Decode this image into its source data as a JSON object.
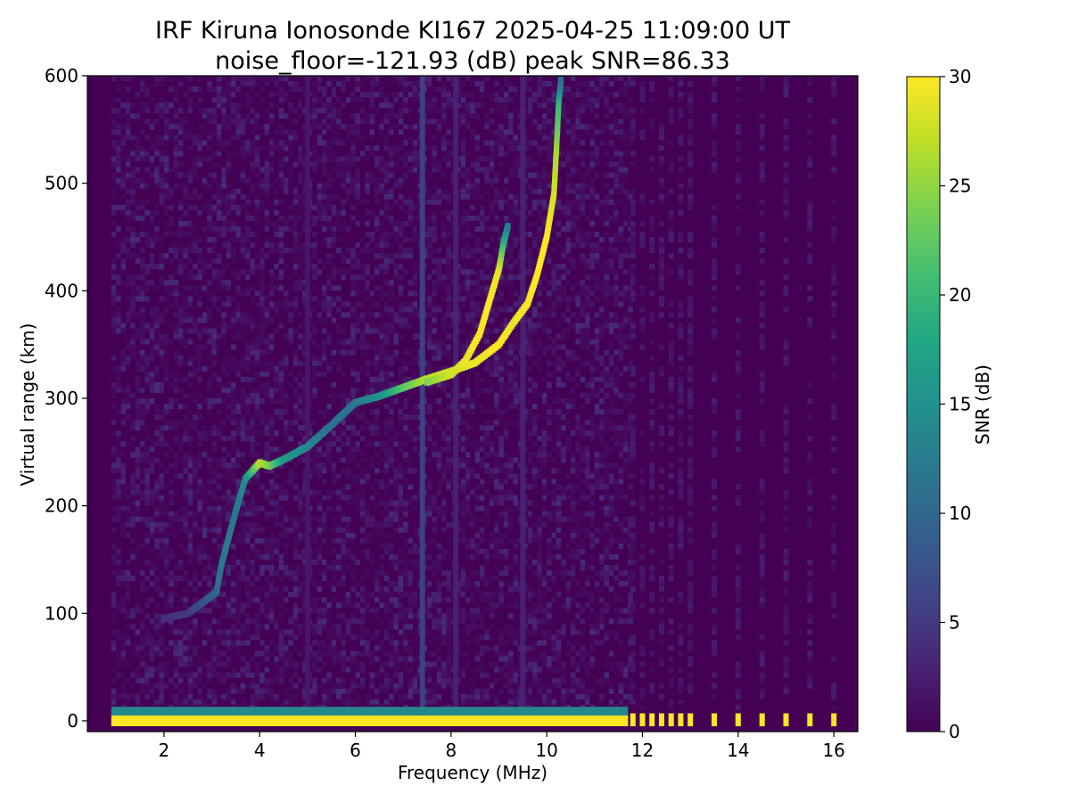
{
  "chart_data": {
    "type": "heatmap",
    "title_line1": "IRF Kiruna Ionosonde KI167 2025-04-25 11:09:00  UT",
    "title_line2": "noise_floor=-121.93 (dB) peak SNR=86.33",
    "xlabel": "Frequency (MHz)",
    "ylabel": "Virtual range (km)",
    "xlim": [
      0.4,
      16.5
    ],
    "ylim": [
      -10,
      600
    ],
    "x_ticks": [
      2,
      4,
      6,
      8,
      10,
      12,
      14,
      16
    ],
    "y_ticks": [
      0,
      100,
      200,
      300,
      400,
      500,
      600
    ],
    "colorbar": {
      "label": "SNR (dB)",
      "range": [
        0,
        30
      ],
      "ticks": [
        0,
        5,
        10,
        15,
        20,
        25,
        30
      ],
      "colormap": "viridis"
    },
    "continuous_coverage_mhz": [
      0.9,
      11.7
    ],
    "sparse_frequencies_mhz": [
      11.8,
      12.0,
      12.2,
      12.4,
      12.6,
      12.8,
      13.0,
      13.5,
      14.0,
      14.5,
      15.0,
      15.5,
      16.0
    ],
    "ground_echo": {
      "range_km": [
        -5,
        5
      ],
      "snr_db": 30
    },
    "o_trace": [
      [
        2.0,
        95,
        4
      ],
      [
        2.5,
        100,
        5
      ],
      [
        2.9,
        113,
        8
      ],
      [
        3.1,
        120,
        10
      ],
      [
        3.2,
        145,
        12
      ],
      [
        3.5,
        195,
        12
      ],
      [
        3.7,
        225,
        14
      ],
      [
        4.0,
        240,
        27
      ],
      [
        4.2,
        237,
        24
      ],
      [
        4.5,
        243,
        16
      ],
      [
        5.0,
        255,
        14
      ],
      [
        5.5,
        275,
        11
      ],
      [
        6.0,
        296,
        12
      ],
      [
        6.5,
        302,
        15
      ],
      [
        7.0,
        310,
        22
      ],
      [
        7.5,
        318,
        27
      ],
      [
        8.0,
        325,
        28
      ],
      [
        8.5,
        333,
        29
      ],
      [
        9.0,
        350,
        30
      ],
      [
        9.3,
        370,
        29
      ],
      [
        9.6,
        388,
        30
      ],
      [
        9.8,
        415,
        30
      ],
      [
        10.0,
        450,
        30
      ],
      [
        10.15,
        490,
        28
      ],
      [
        10.2,
        530,
        26
      ],
      [
        10.25,
        575,
        20
      ],
      [
        10.3,
        598,
        10
      ]
    ],
    "x_trace": [
      [
        7.5,
        315,
        24
      ],
      [
        8.0,
        322,
        28
      ],
      [
        8.3,
        335,
        29
      ],
      [
        8.6,
        360,
        30
      ],
      [
        8.8,
        390,
        30
      ],
      [
        9.0,
        420,
        29
      ],
      [
        9.1,
        445,
        20
      ],
      [
        9.2,
        462,
        12
      ]
    ],
    "interference_lines_mhz": [
      {
        "f": 7.4,
        "snr": 6
      },
      {
        "f": 8.1,
        "snr": 3
      },
      {
        "f": 9.5,
        "snr": 3
      },
      {
        "f": 5.0,
        "snr": 2
      }
    ]
  }
}
